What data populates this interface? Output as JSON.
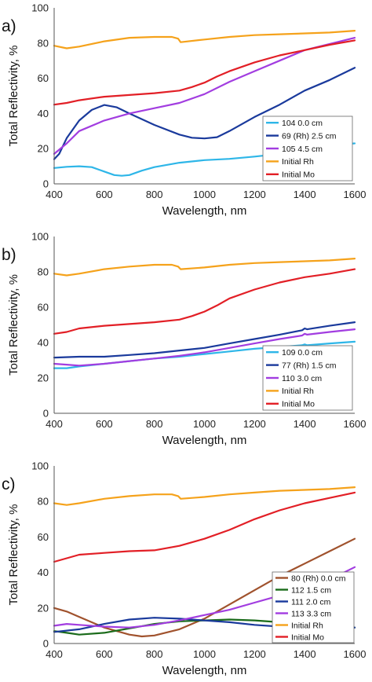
{
  "chart_data": [
    {
      "type": "line",
      "panel_label": "a)",
      "xlabel": "Wavelength, nm",
      "ylabel": "Total Reflectivity, %",
      "xlim": [
        400,
        1600
      ],
      "ylim": [
        0,
        100
      ],
      "xticks": [
        "400",
        "600",
        "800",
        "1000",
        "1200",
        "1400",
        "1600"
      ],
      "yticks": [
        "0",
        "20",
        "40",
        "60",
        "80",
        "100"
      ],
      "legend_position": "right",
      "series": [
        {
          "name": "104  0.0 cm",
          "color": "#2eb6e8",
          "points": [
            [
              400,
              9
            ],
            [
              450,
              9.7
            ],
            [
              500,
              10
            ],
            [
              550,
              9.5
            ],
            [
              600,
              7
            ],
            [
              640,
              5
            ],
            [
              670,
              4.6
            ],
            [
              700,
              5
            ],
            [
              750,
              7.5
            ],
            [
              800,
              9.5
            ],
            [
              900,
              12
            ],
            [
              1000,
              13.5
            ],
            [
              1100,
              14.2
            ],
            [
              1200,
              15.5
            ],
            [
              1300,
              17
            ],
            [
              1400,
              19
            ],
            [
              1500,
              21
            ],
            [
              1550,
              22.5
            ],
            [
              1600,
              23
            ]
          ]
        },
        {
          "name": "69 (Rh) 2.5 cm",
          "color": "#1a3a9c",
          "points": [
            [
              400,
              14
            ],
            [
              420,
              17
            ],
            [
              450,
              26
            ],
            [
              500,
              36
            ],
            [
              550,
              42
            ],
            [
              600,
              44.8
            ],
            [
              650,
              43.5
            ],
            [
              700,
              40
            ],
            [
              800,
              33.5
            ],
            [
              900,
              28
            ],
            [
              950,
              26.2
            ],
            [
              1000,
              25.8
            ],
            [
              1050,
              26.5
            ],
            [
              1100,
              30
            ],
            [
              1200,
              38
            ],
            [
              1300,
              45
            ],
            [
              1400,
              53
            ],
            [
              1500,
              59
            ],
            [
              1600,
              66
            ]
          ]
        },
        {
          "name": "105  4.5 cm",
          "color": "#a23de0",
          "points": [
            [
              400,
              17
            ],
            [
              450,
              23
            ],
            [
              500,
              30
            ],
            [
              600,
              36
            ],
            [
              700,
              40
            ],
            [
              800,
              43
            ],
            [
              900,
              46
            ],
            [
              1000,
              51
            ],
            [
              1100,
              58
            ],
            [
              1200,
              64
            ],
            [
              1300,
              70
            ],
            [
              1400,
              76
            ],
            [
              1500,
              79.5
            ],
            [
              1600,
              83
            ]
          ]
        },
        {
          "name": "Initial Rh",
          "color": "#f5a21b",
          "points": [
            [
              400,
              78.5
            ],
            [
              450,
              77
            ],
            [
              500,
              78
            ],
            [
              600,
              81
            ],
            [
              700,
              83
            ],
            [
              800,
              83.5
            ],
            [
              870,
              83.5
            ],
            [
              895,
              82.5
            ],
            [
              905,
              80.5
            ],
            [
              1000,
              82
            ],
            [
              1100,
              83.5
            ],
            [
              1200,
              84.5
            ],
            [
              1300,
              85
            ],
            [
              1400,
              85.5
            ],
            [
              1500,
              86
            ],
            [
              1600,
              87
            ]
          ]
        },
        {
          "name": "Initial Mo",
          "color": "#e21f26",
          "points": [
            [
              400,
              45
            ],
            [
              450,
              46
            ],
            [
              500,
              47.5
            ],
            [
              600,
              49.5
            ],
            [
              700,
              50.5
            ],
            [
              800,
              51.5
            ],
            [
              900,
              53
            ],
            [
              950,
              55
            ],
            [
              1000,
              57.5
            ],
            [
              1050,
              61
            ],
            [
              1100,
              64
            ],
            [
              1200,
              69
            ],
            [
              1300,
              73
            ],
            [
              1400,
              76
            ],
            [
              1500,
              79
            ],
            [
              1600,
              81.5
            ]
          ]
        }
      ]
    },
    {
      "type": "line",
      "panel_label": "b)",
      "xlabel": "Wavelength, nm",
      "ylabel": "Total Reflectivity, %",
      "xlim": [
        400,
        1600
      ],
      "ylim": [
        0,
        100
      ],
      "xticks": [
        "400",
        "600",
        "800",
        "1000",
        "1200",
        "1400",
        "1600"
      ],
      "yticks": [
        "0",
        "20",
        "40",
        "60",
        "80",
        "100"
      ],
      "legend_position": "bottom-right",
      "series": [
        {
          "name": "109  0.0 cm",
          "color": "#2eb6e8",
          "points": [
            [
              400,
              25.5
            ],
            [
              450,
              25.5
            ],
            [
              500,
              26.5
            ],
            [
              600,
              28
            ],
            [
              700,
              29.5
            ],
            [
              800,
              31
            ],
            [
              900,
              32
            ],
            [
              1000,
              33.5
            ],
            [
              1100,
              35
            ],
            [
              1200,
              36.5
            ],
            [
              1300,
              37.5
            ],
            [
              1390,
              38.5
            ],
            [
              1400,
              39
            ],
            [
              1410,
              38.5
            ],
            [
              1500,
              39.5
            ],
            [
              1600,
              40.5
            ]
          ]
        },
        {
          "name": "77 (Rh) 1.5 cm",
          "color": "#1a3a9c",
          "points": [
            [
              400,
              31.5
            ],
            [
              500,
              32
            ],
            [
              600,
              32
            ],
            [
              700,
              33
            ],
            [
              800,
              34
            ],
            [
              900,
              35.5
            ],
            [
              1000,
              37
            ],
            [
              1100,
              39.5
            ],
            [
              1200,
              42
            ],
            [
              1300,
              44.5
            ],
            [
              1390,
              47
            ],
            [
              1400,
              48
            ],
            [
              1410,
              47.5
            ],
            [
              1500,
              49.5
            ],
            [
              1600,
              51.5
            ]
          ]
        },
        {
          "name": "110  3.0 cm",
          "color": "#a23de0",
          "points": [
            [
              400,
              28
            ],
            [
              450,
              27.5
            ],
            [
              500,
              27
            ],
            [
              600,
              28
            ],
            [
              700,
              29.5
            ],
            [
              800,
              31
            ],
            [
              900,
              32.5
            ],
            [
              1000,
              34.5
            ],
            [
              1100,
              37
            ],
            [
              1200,
              39.5
            ],
            [
              1300,
              42
            ],
            [
              1390,
              44
            ],
            [
              1400,
              45
            ],
            [
              1410,
              44.5
            ],
            [
              1500,
              46
            ],
            [
              1600,
              47.5
            ]
          ]
        },
        {
          "name": "Initial Rh",
          "color": "#f5a21b",
          "points": [
            [
              400,
              79
            ],
            [
              450,
              78
            ],
            [
              500,
              79
            ],
            [
              600,
              81.5
            ],
            [
              700,
              83
            ],
            [
              800,
              84
            ],
            [
              870,
              84
            ],
            [
              895,
              83
            ],
            [
              905,
              81.5
            ],
            [
              1000,
              82.5
            ],
            [
              1100,
              84
            ],
            [
              1200,
              85
            ],
            [
              1300,
              85.5
            ],
            [
              1400,
              86
            ],
            [
              1500,
              86.5
            ],
            [
              1600,
              87.5
            ]
          ]
        },
        {
          "name": "Initial Mo",
          "color": "#e21f26",
          "points": [
            [
              400,
              45
            ],
            [
              450,
              46
            ],
            [
              500,
              48
            ],
            [
              600,
              49.5
            ],
            [
              700,
              50.5
            ],
            [
              800,
              51.5
            ],
            [
              900,
              53
            ],
            [
              950,
              55
            ],
            [
              1000,
              57.5
            ],
            [
              1050,
              61
            ],
            [
              1100,
              65
            ],
            [
              1200,
              70
            ],
            [
              1300,
              74
            ],
            [
              1400,
              77
            ],
            [
              1500,
              79
            ],
            [
              1600,
              81.5
            ]
          ]
        }
      ]
    },
    {
      "type": "line",
      "panel_label": "c)",
      "xlabel": "Wavelength, nm",
      "ylabel": "Total Reflectivity, %",
      "xlim": [
        400,
        1600
      ],
      "ylim": [
        0,
        100
      ],
      "xticks": [
        "400",
        "600",
        "800",
        "1000",
        "1200",
        "1400",
        "1600"
      ],
      "yticks": [
        "0",
        "20",
        "40",
        "60",
        "80",
        "100"
      ],
      "legend_position": "bottom-right",
      "series": [
        {
          "name": "80 (Rh)  0.0 cm",
          "color": "#a0522d",
          "points": [
            [
              400,
              20
            ],
            [
              450,
              18
            ],
            [
              500,
              15
            ],
            [
              600,
              9
            ],
            [
              700,
              5
            ],
            [
              750,
              4
            ],
            [
              800,
              4.5
            ],
            [
              900,
              8
            ],
            [
              1000,
              14
            ],
            [
              1100,
              22
            ],
            [
              1200,
              30
            ],
            [
              1300,
              38
            ],
            [
              1400,
              45
            ],
            [
              1500,
              52
            ],
            [
              1600,
              59
            ]
          ]
        },
        {
          "name": "112  1.5 cm",
          "color": "#1a6b1a",
          "points": [
            [
              400,
              7
            ],
            [
              450,
              6
            ],
            [
              500,
              5
            ],
            [
              600,
              6
            ],
            [
              700,
              8.5
            ],
            [
              800,
              11
            ],
            [
              900,
              12.5
            ],
            [
              1000,
              13
            ],
            [
              1100,
              13.5
            ],
            [
              1200,
              13
            ],
            [
              1300,
              12
            ],
            [
              1400,
              11
            ],
            [
              1500,
              10
            ],
            [
              1600,
              9
            ]
          ]
        },
        {
          "name": "111  2.0 cm",
          "color": "#1a3a9c",
          "points": [
            [
              400,
              6.5
            ],
            [
              500,
              8
            ],
            [
              600,
              11
            ],
            [
              700,
              13.5
            ],
            [
              800,
              14.5
            ],
            [
              900,
              14
            ],
            [
              1000,
              13
            ],
            [
              1100,
              12
            ],
            [
              1200,
              10.5
            ],
            [
              1300,
              9.5
            ],
            [
              1400,
              9
            ],
            [
              1500,
              9
            ],
            [
              1600,
              9
            ]
          ]
        },
        {
          "name": "113  3.3 cm",
          "color": "#a23de0",
          "points": [
            [
              400,
              10
            ],
            [
              450,
              11
            ],
            [
              500,
              10.5
            ],
            [
              600,
              9.5
            ],
            [
              700,
              9
            ],
            [
              800,
              10.5
            ],
            [
              900,
              13
            ],
            [
              1000,
              16
            ],
            [
              1100,
              19
            ],
            [
              1200,
              23
            ],
            [
              1300,
              27
            ],
            [
              1400,
              31
            ],
            [
              1500,
              36
            ],
            [
              1600,
              43
            ]
          ]
        },
        {
          "name": "Initial Rh",
          "color": "#f5a21b",
          "points": [
            [
              400,
              79
            ],
            [
              450,
              78
            ],
            [
              500,
              79
            ],
            [
              600,
              81.5
            ],
            [
              700,
              83
            ],
            [
              800,
              84
            ],
            [
              870,
              84
            ],
            [
              895,
              83
            ],
            [
              905,
              81.5
            ],
            [
              1000,
              82.5
            ],
            [
              1100,
              84
            ],
            [
              1200,
              85
            ],
            [
              1300,
              86
            ],
            [
              1400,
              86.5
            ],
            [
              1500,
              87
            ],
            [
              1600,
              88
            ]
          ]
        },
        {
          "name": "Initial Mo",
          "color": "#e21f26",
          "points": [
            [
              400,
              46
            ],
            [
              450,
              48
            ],
            [
              500,
              50
            ],
            [
              600,
              51
            ],
            [
              700,
              52
            ],
            [
              800,
              52.5
            ],
            [
              900,
              55
            ],
            [
              1000,
              59
            ],
            [
              1100,
              64
            ],
            [
              1200,
              70
            ],
            [
              1300,
              75
            ],
            [
              1400,
              79
            ],
            [
              1500,
              82
            ],
            [
              1600,
              85
            ]
          ]
        }
      ]
    }
  ]
}
